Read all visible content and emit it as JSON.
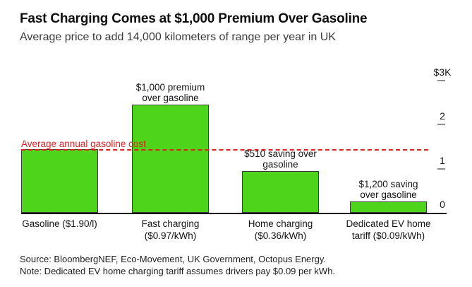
{
  "header": {
    "title": "Fast Charging Comes at $1,000 Premium Over Gasoline",
    "subtitle": "Average price to add 14,000 kilometers of range per year in UK"
  },
  "chart_data": {
    "type": "bar",
    "title": "Fast Charging Comes at $1,000 Premium Over Gasoline",
    "subtitle": "Average price to add 14,000 kilometers of range per year in UK",
    "unit": "USD per year",
    "categories": [
      "Gasoline ($1.90/l)",
      "Fast charging ($0.97/kWh)",
      "Home charging ($0.36/kWh)",
      "Dedicated EV home tariff ($0.09/kWh)"
    ],
    "category_label_lines": [
      [
        "Gasoline ($1.90/l)"
      ],
      [
        "Fast charging",
        "($0.97/kWh)"
      ],
      [
        "Home charging",
        "($0.36/kWh)"
      ],
      [
        "Dedicated EV home",
        "tariff ($0.09/kWh)"
      ]
    ],
    "values": [
      1450,
      2450,
      940,
      250
    ],
    "annotation_lines": [
      [],
      [
        "$1,000 premium",
        "over gasoline"
      ],
      [
        "$510 saving over",
        "gasoline"
      ],
      [
        "$1,200 saving",
        "over gasoline"
      ]
    ],
    "reference_line": {
      "label": "Average annual gasoline cost",
      "value": 1450
    },
    "y_axis": {
      "side": "right",
      "max": 3000,
      "ticks": [
        {
          "label": "$3K",
          "value": 3000
        },
        {
          "label": "2",
          "value": 2000
        },
        {
          "label": "1",
          "value": 1000
        },
        {
          "label": "0",
          "value": 0
        }
      ]
    },
    "ylim": [
      0,
      3000
    ],
    "grid": false,
    "legend": false,
    "colors": {
      "bar": "#4ed41a",
      "bar_border": "#3c3c3c",
      "reference": "#dd2222",
      "axis": "#000000",
      "tick": "#8d8d8d"
    }
  },
  "footer": {
    "source": "Source: BloombergNEF, Eco-Movement, UK Government, Octopus Energy.",
    "note": "Note: Dedicated EV home charging tariff assumes drivers pay $0.09 per kWh."
  }
}
